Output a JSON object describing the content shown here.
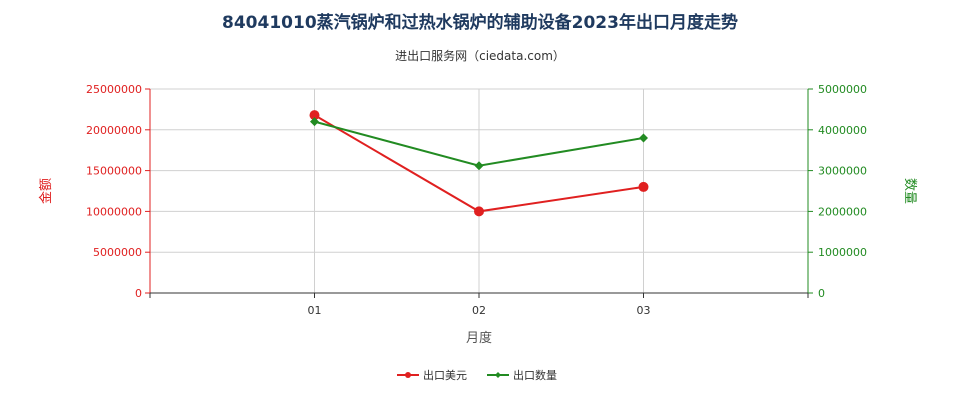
{
  "title": "84041010蒸汽锅炉和过热水锅炉的辅助设备2023年出口月度走势",
  "subtitle": "进出口服务网（ciedata.com）",
  "colors": {
    "amount": "#e02020",
    "quantity": "#228b22",
    "grid": "#d0d0d0",
    "title": "#1f3a5f"
  },
  "chart_data": {
    "type": "line",
    "title": "84041010蒸汽锅炉和过热水锅炉的辅助设备2023年出口月度走势",
    "subtitle": "进出口服务网（ciedata.com）",
    "xlabel": "月度",
    "ylabel_left": "金额",
    "ylabel_right": "数量",
    "categories": [
      "01",
      "02",
      "03"
    ],
    "ylim_left": [
      0,
      25000000
    ],
    "ylim_right": [
      0,
      5000000
    ],
    "yticks_left": [
      "0",
      "5000000",
      "10000000",
      "15000000",
      "20000000",
      "25000000"
    ],
    "yticks_right": [
      "0",
      "1000000",
      "2000000",
      "3000000",
      "4000000",
      "5000000"
    ],
    "grid": true,
    "legend_position": "bottom-center",
    "series": [
      {
        "name": "出口美元",
        "axis": "left",
        "color": "#e02020",
        "marker": "circle",
        "values": [
          21800000,
          10000000,
          13000000
        ]
      },
      {
        "name": "出口数量",
        "axis": "right",
        "color": "#228b22",
        "marker": "diamond",
        "values": [
          4200000,
          3120000,
          3800000
        ]
      }
    ]
  }
}
